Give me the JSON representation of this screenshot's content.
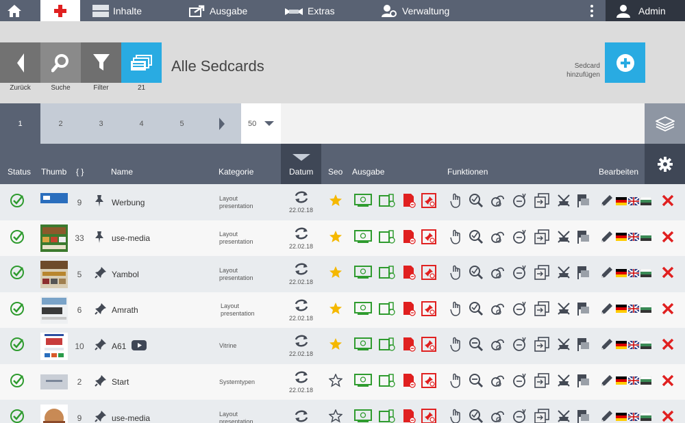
{
  "nav": {
    "items": [
      {
        "label": "Inhalte"
      },
      {
        "label": "Ausgabe"
      },
      {
        "label": "Extras"
      },
      {
        "label": "Verwaltung"
      }
    ],
    "user": "Admin"
  },
  "toolbar": {
    "back": "Zurück",
    "search": "Suche",
    "filter": "Filter",
    "count": "21",
    "title": "Alle Sedcards",
    "add_line1": "Sedcard",
    "add_line2": "hinzufügen"
  },
  "pager": {
    "pages": [
      "1",
      "2",
      "3",
      "4",
      "5"
    ],
    "per_page": "50"
  },
  "table": {
    "headers": {
      "status": "Status",
      "thumb": "Thumb",
      "count": "{ }",
      "name": "Name",
      "kategorie": "Kategorie",
      "datum": "Datum",
      "seo": "Seo",
      "ausgabe": "Ausgabe",
      "funktionen": "Funktionen",
      "bearbeiten": "Bearbeiten"
    },
    "rows": [
      {
        "count": "9",
        "name": "Werbung",
        "cat1": "Layout",
        "cat2": "presentation",
        "date": "22.02.18",
        "star": true
      },
      {
        "count": "33",
        "name": "use-media",
        "cat1": "Layout",
        "cat2": "presentation",
        "date": "22.02.18",
        "star": true
      },
      {
        "count": "5",
        "name": "Yambol",
        "cat1": "Layout",
        "cat2": "presentation",
        "date": "22.02.18",
        "star": true
      },
      {
        "count": "6",
        "name": "Amrath",
        "cat1": "Layout",
        "cat2": "presentation",
        "date": "22.02.18",
        "star": true
      },
      {
        "count": "10",
        "name": "A61",
        "cat1": "Vitrine",
        "cat2": "",
        "date": "22.02.18",
        "star": true
      },
      {
        "count": "2",
        "name": "Start",
        "cat1": "Systemtypen",
        "cat2": "",
        "date": "22.02.18",
        "star": false
      },
      {
        "count": "9",
        "name": "use-media",
        "cat1": "Layout",
        "cat2": "presentation",
        "date": "",
        "star": false
      }
    ]
  },
  "colors": {
    "nav": "#596273",
    "accent": "#29abe2",
    "green": "#2e9b2e",
    "red": "#e02020",
    "star": "#f5b800"
  }
}
